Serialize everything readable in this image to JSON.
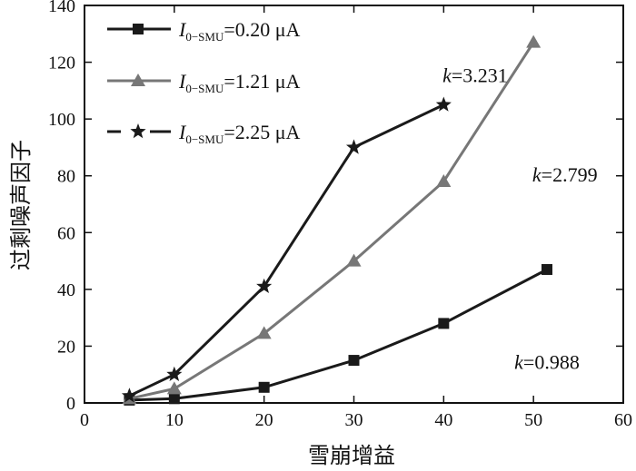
{
  "chart_data": {
    "type": "line",
    "xlabel": "雪崩增益",
    "ylabel": "过剩噪声因子",
    "xlim": [
      0,
      60
    ],
    "ylim": [
      0,
      140
    ],
    "x_ticks": [
      "0",
      "10",
      "20",
      "30",
      "40",
      "50",
      "60"
    ],
    "y_ticks": [
      "0",
      "20",
      "40",
      "60",
      "80",
      "100",
      "120",
      "140"
    ],
    "grid": false,
    "legend_position": "top-left",
    "series": [
      {
        "name_var": "I",
        "name_sub": "0−SMU",
        "name_rest": "=0.20 μA",
        "color": "#1a1a1a",
        "marker": "square",
        "x": [
          5,
          10,
          20,
          30,
          40,
          51.5
        ],
        "y": [
          1,
          1.5,
          5.5,
          15,
          28,
          47
        ]
      },
      {
        "name_var": "I",
        "name_sub": "0−SMU",
        "name_rest": "=1.21 μA",
        "color": "#777777",
        "marker": "triangle",
        "x": [
          5,
          10,
          20,
          30,
          40,
          50
        ],
        "y": [
          1.5,
          5,
          24.5,
          50,
          78,
          127
        ]
      },
      {
        "name_var": "I",
        "name_sub": "0−SMU",
        "name_rest": "=2.25 μA",
        "color": "#1a1a1a",
        "marker": "star",
        "x": [
          5,
          10,
          20,
          30,
          40
        ],
        "y": [
          2.5,
          10,
          41,
          90,
          105
        ]
      }
    ],
    "annotations": [
      {
        "k": "k",
        "text": "=3.231",
        "x": 43.5,
        "y": 113
      },
      {
        "k": "k",
        "text": "=2.799",
        "x": 53.5,
        "y": 78
      },
      {
        "k": "k",
        "text": "=0.988",
        "x": 51.5,
        "y": 12
      }
    ]
  }
}
